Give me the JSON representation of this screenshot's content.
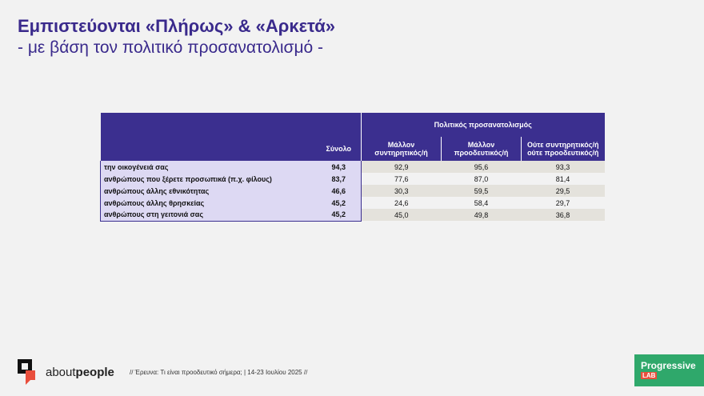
{
  "header": {
    "title": "Εμπιστεύονται «Πλήρως» & «Αρκετά»",
    "subtitle": "- με βάση τον πολιτικό προσανατολισμό -"
  },
  "table": {
    "group_header": "Πολιτικός προσανατολισμός",
    "columns": {
      "total": "Σύνολο",
      "c1": "Μάλλον συντηρητικός/ή",
      "c2": "Μάλλον προοδευτικός/ή",
      "c3": "Ούτε συντηρητικός/ή ούτε προοδευτικός/ή"
    },
    "rows": [
      {
        "label": "την οικογένειά σας",
        "total": "94,3",
        "c1": "92,9",
        "c2": "95,6",
        "c3": "93,3"
      },
      {
        "label": "ανθρώπους που ξέρετε προσωπικά (π.χ. φίλους)",
        "total": "83,7",
        "c1": "77,6",
        "c2": "87,0",
        "c3": "81,4"
      },
      {
        "label": "ανθρώπους άλλης εθνικότητας",
        "total": "46,6",
        "c1": "30,3",
        "c2": "59,5",
        "c3": "29,5"
      },
      {
        "label": "ανθρώπους άλλης θρησκείας",
        "total": "45,2",
        "c1": "24,6",
        "c2": "58,4",
        "c3": "29,7"
      },
      {
        "label": "ανθρώπους στη γειτονιά σας",
        "total": "45,2",
        "c1": "45,0",
        "c2": "49,8",
        "c3": "36,8"
      }
    ]
  },
  "footer": {
    "brand_a": "about",
    "brand_b": "people",
    "note": "// Έρευνα: Τι είναι προοδευτικό σήμερα; | 14-23 Ιουλίου 2025 //",
    "badge_main": "Progressive",
    "badge_sub": "LAB"
  },
  "colors": {
    "title": "#3a2a8c",
    "header_bg": "#3b2f8f",
    "badge": "#2fa86b"
  }
}
